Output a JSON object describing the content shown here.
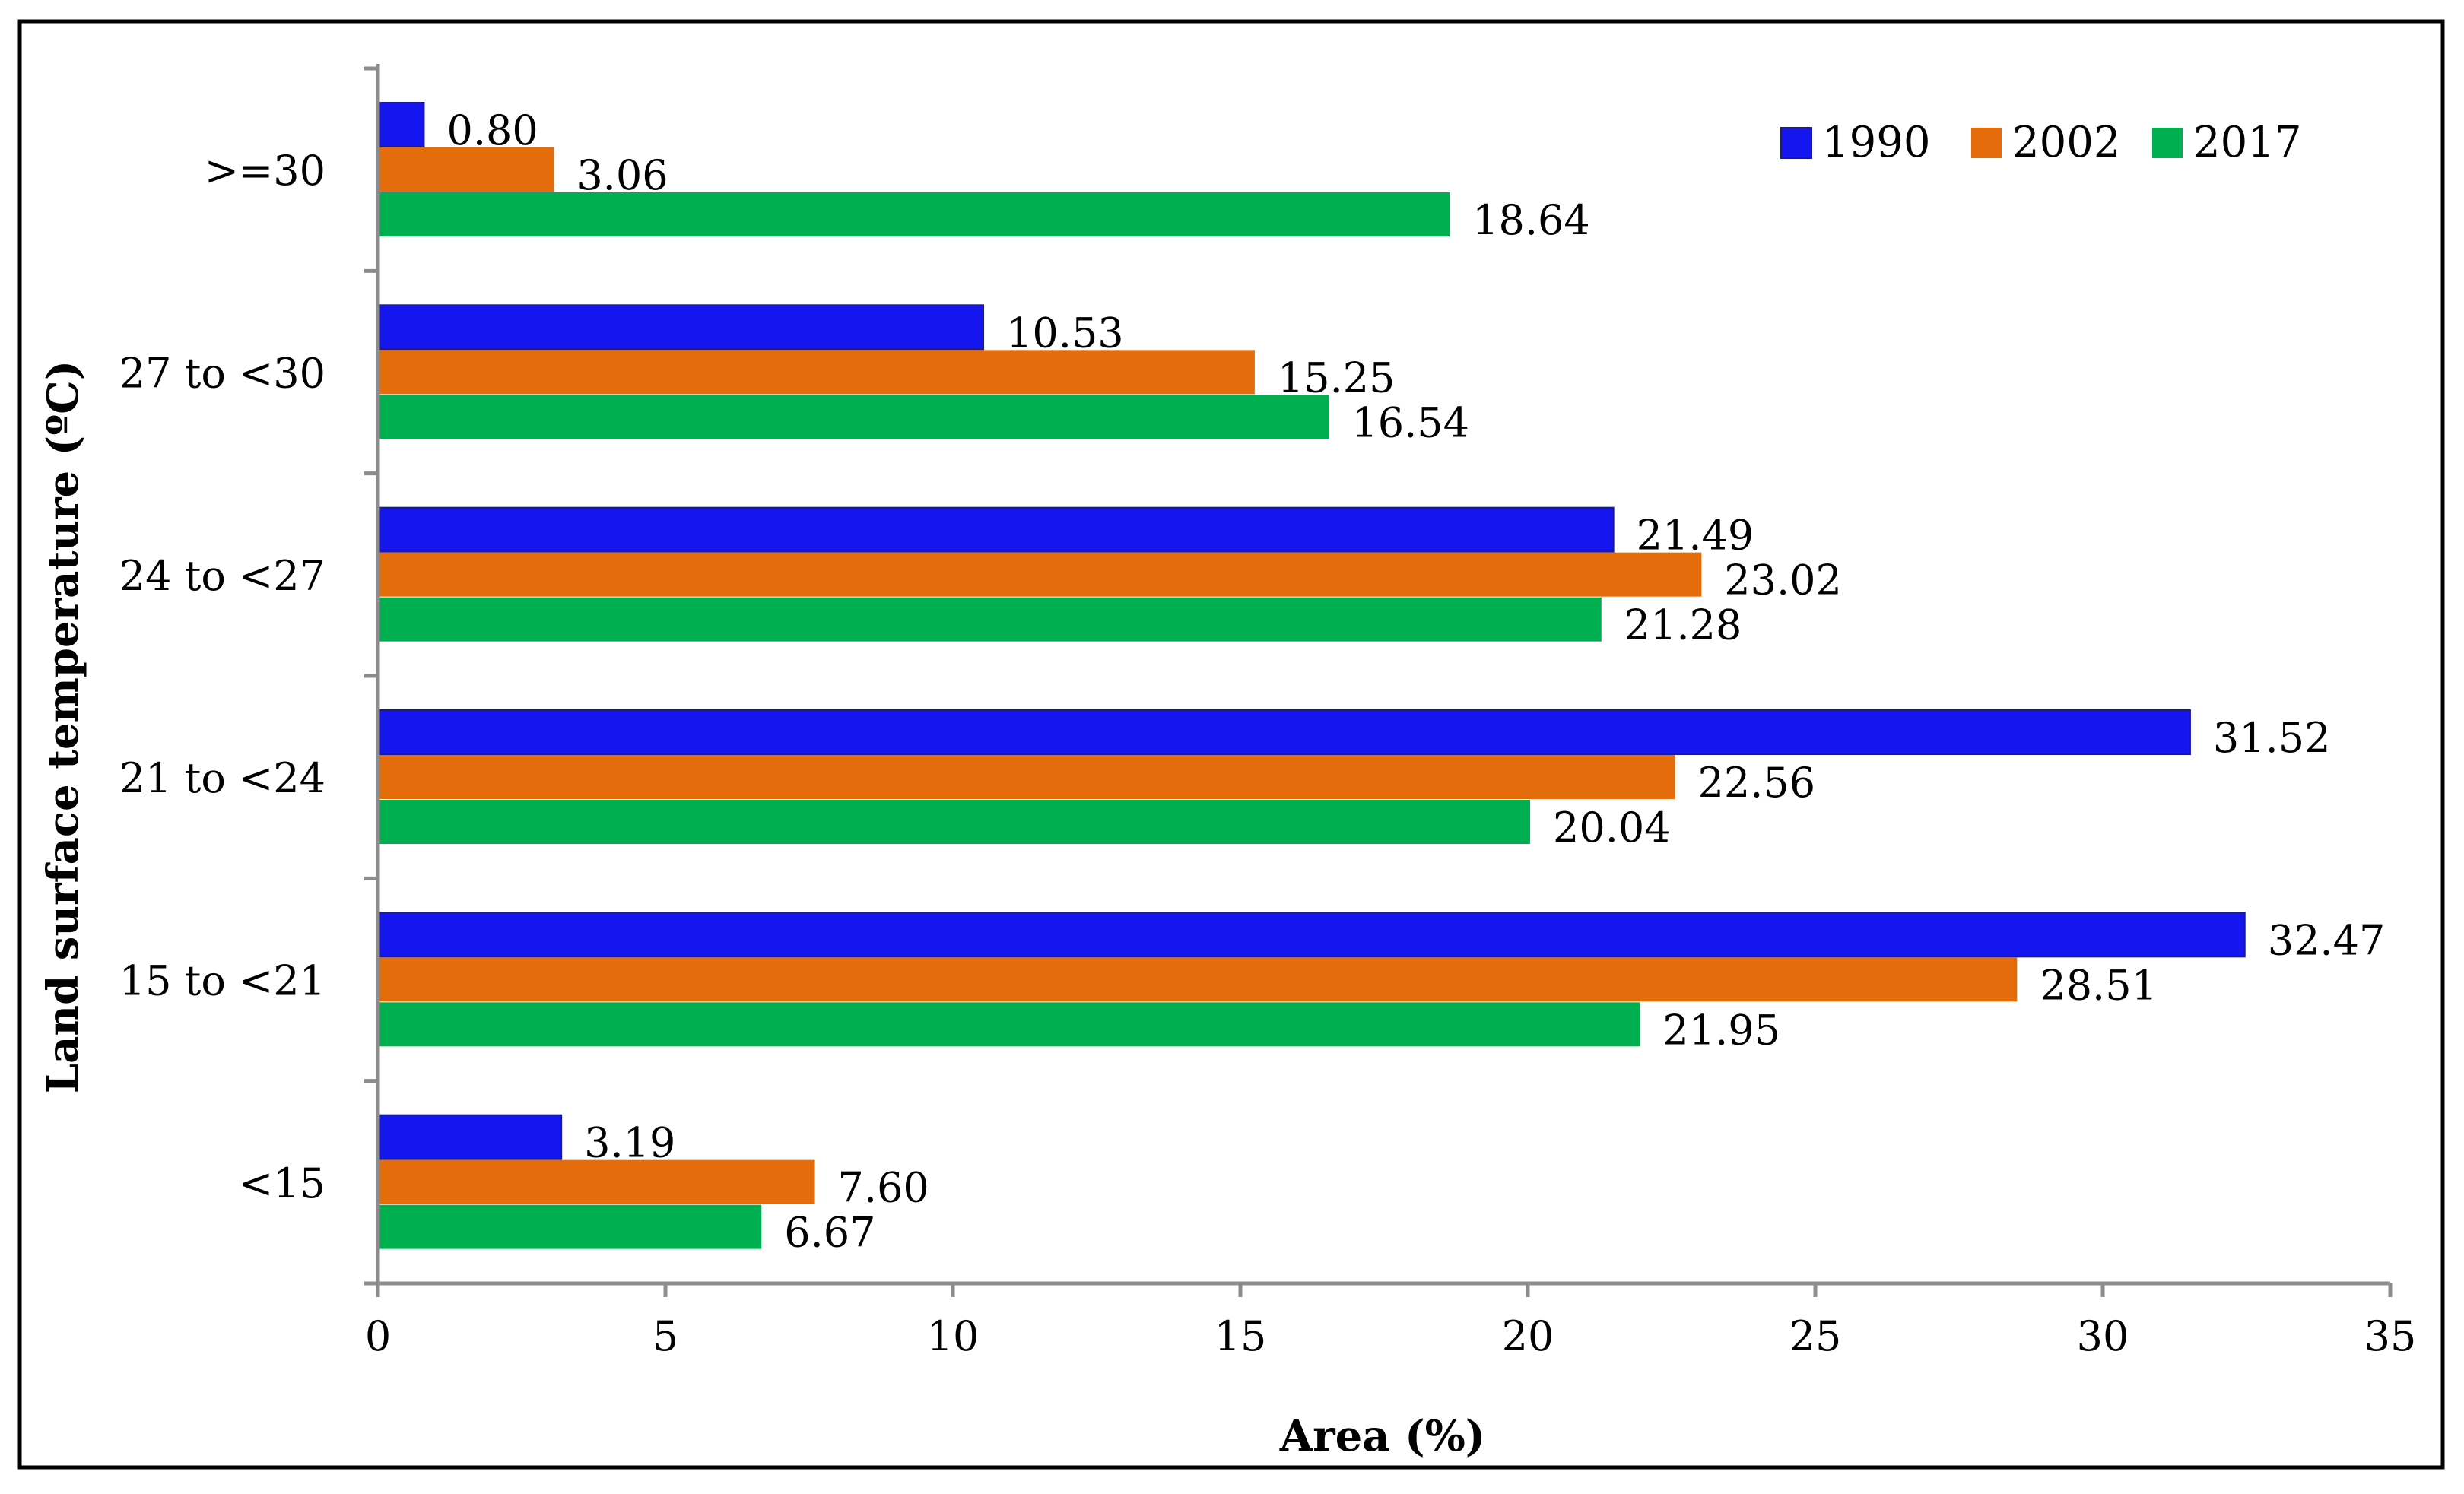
{
  "chart_data": {
    "type": "bar",
    "orientation": "horizontal",
    "title": "",
    "xlabel": "Area (%)",
    "ylabel": "Land surface temperature (ºC)",
    "xlim": [
      0,
      35
    ],
    "x_ticks": [
      "0",
      "5",
      "10",
      "15",
      "20",
      "25",
      "30",
      "35"
    ],
    "grid": false,
    "legend_position": "top-right",
    "categories": [
      ">=30",
      "27 to <30",
      "24 to <27",
      "21 to <24",
      "15 to <21",
      "<15"
    ],
    "series": [
      {
        "name": "1990",
        "color": "#1515F0",
        "values": [
          0.8,
          10.53,
          21.49,
          31.52,
          32.47,
          3.19
        ],
        "labels": [
          "0.80",
          "10.53",
          "21.49",
          "31.52",
          "32.47",
          "3.19"
        ]
      },
      {
        "name": "2002",
        "color": "#E46C0A",
        "values": [
          3.06,
          15.25,
          23.02,
          22.56,
          28.51,
          7.6
        ],
        "labels": [
          "3.06",
          "15.25",
          "23.02",
          "22.56",
          "28.51",
          "7.60"
        ]
      },
      {
        "name": "2017",
        "color": "#00B050",
        "values": [
          18.64,
          16.54,
          21.28,
          20.04,
          21.95,
          6.67
        ],
        "labels": [
          "18.64",
          "16.54",
          "21.28",
          "20.04",
          "21.95",
          "6.67"
        ]
      }
    ]
  }
}
